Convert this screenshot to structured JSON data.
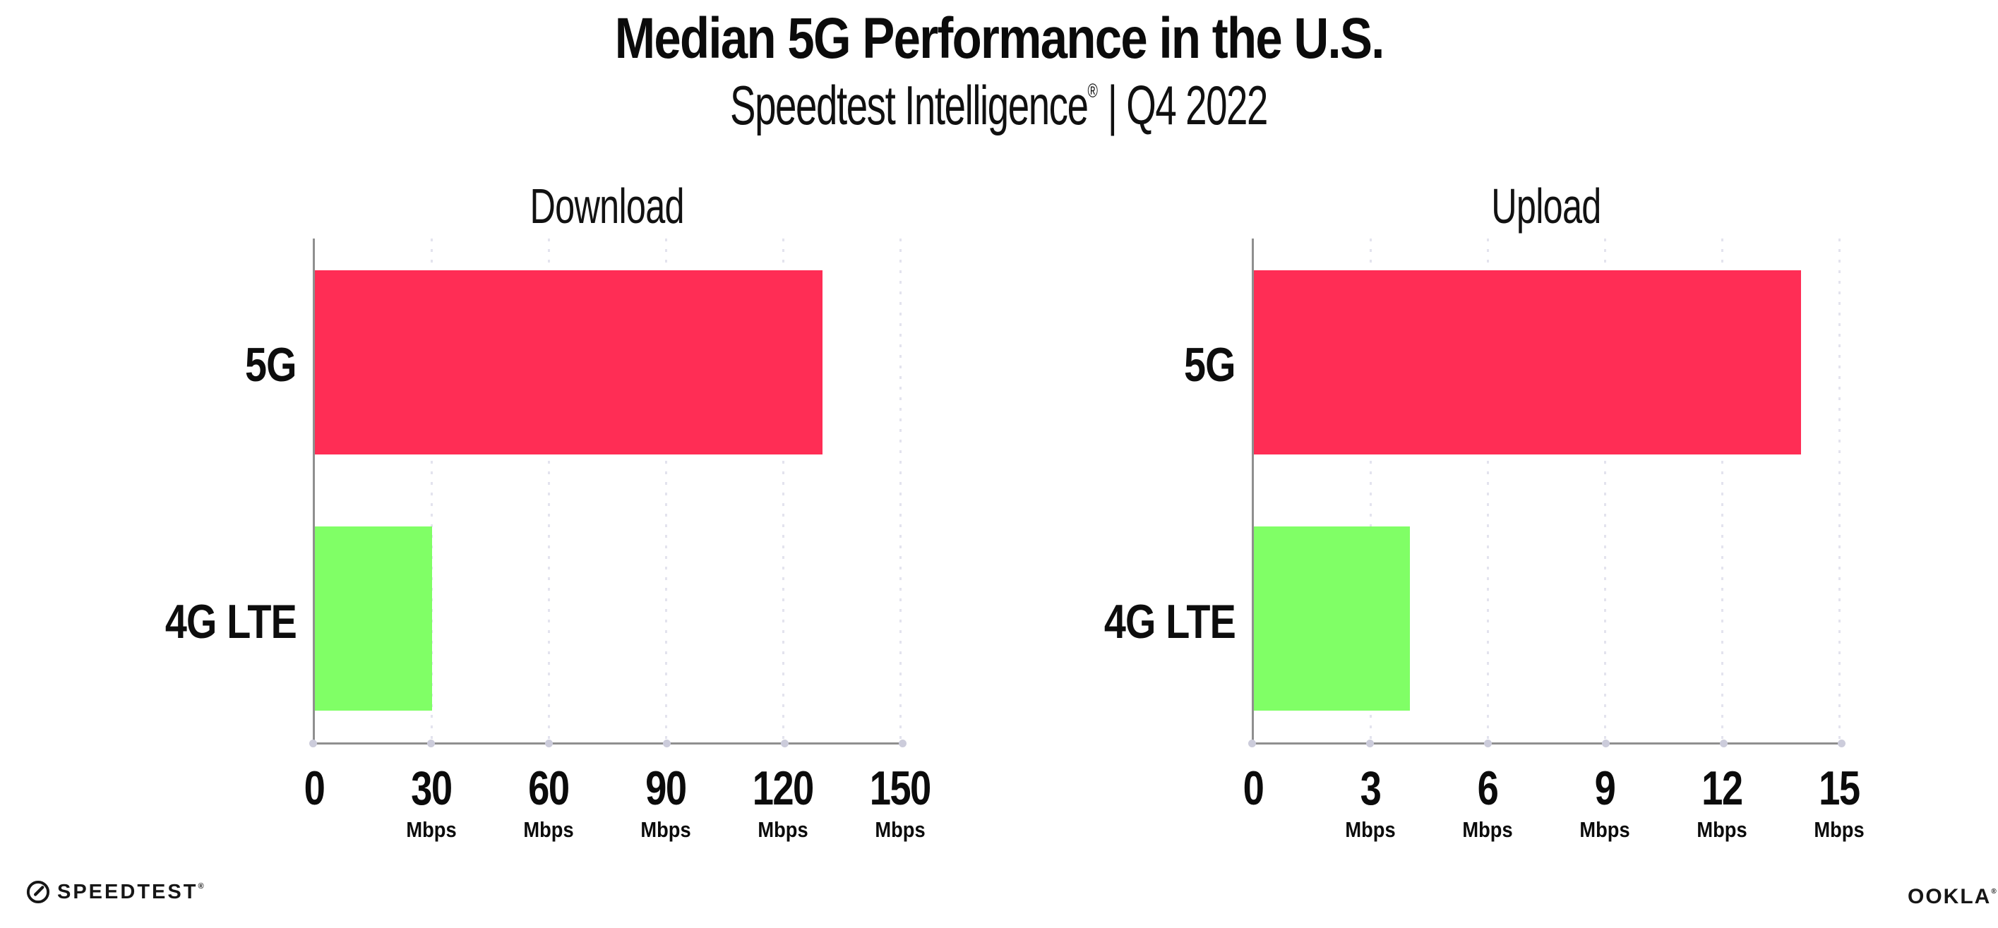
{
  "header": {
    "title": "Median 5G Performance in the U.S.",
    "subtitle_main": "Speedtest Intelligence",
    "subtitle_reg": "®",
    "subtitle_rest": " | Q4 2022"
  },
  "footer": {
    "speedtest_wordmark": "SPEEDTEST",
    "speedtest_reg": "®",
    "ookla_wordmark": "OOKLA",
    "ookla_reg": "®",
    "speedtest_gauge_icon": "gauge-icon"
  },
  "colors": {
    "bar_5g": "#ff2d55",
    "bar_4g_lte": "#80ff66",
    "gridline": "#e3e3ee",
    "axis": "#8f8f8f",
    "text": "#0d0d0d"
  },
  "chart_data": [
    {
      "type": "bar",
      "orientation": "horizontal",
      "title": "Download",
      "categories": [
        "5G",
        "4G LTE"
      ],
      "values": [
        130,
        30
      ],
      "unit": "Mbps",
      "xlim": [
        0,
        150
      ],
      "xticks": [
        0,
        30,
        60,
        90,
        120,
        150
      ],
      "series_colors": [
        "#ff2d55",
        "#80ff66"
      ],
      "grid": "vertical-dotted",
      "legend": "none"
    },
    {
      "type": "bar",
      "orientation": "horizontal",
      "title": "Upload",
      "categories": [
        "5G",
        "4G LTE"
      ],
      "values": [
        14,
        4
      ],
      "unit": "Mbps",
      "xlim": [
        0,
        15
      ],
      "xticks": [
        0,
        3,
        6,
        9,
        12,
        15
      ],
      "series_colors": [
        "#ff2d55",
        "#80ff66"
      ],
      "grid": "vertical-dotted",
      "legend": "none"
    }
  ]
}
